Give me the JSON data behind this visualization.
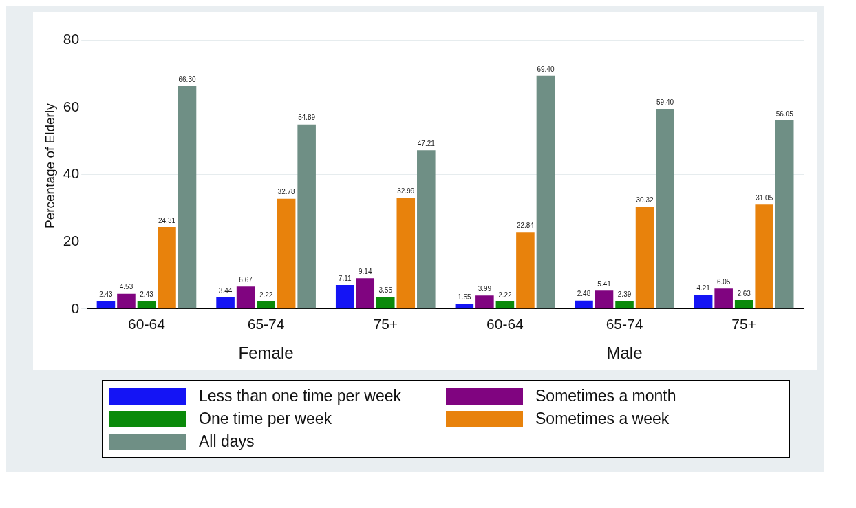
{
  "chart_data": {
    "type": "bar",
    "ylabel": "Percentage of Elderly",
    "categories": [
      "60-64",
      "65-74",
      "75+",
      "60-64",
      "65-74",
      "75+"
    ],
    "annotations": [
      "Female",
      "Male"
    ],
    "ylim": [
      0,
      85
    ],
    "yticks": [
      0,
      20,
      40,
      60,
      80
    ],
    "grid": "y",
    "legend": "bottom",
    "series": [
      {
        "name": "Less than one time per week",
        "color": "#1414f5",
        "values": [
          2.43,
          3.44,
          7.11,
          1.55,
          2.48,
          4.21
        ],
        "value_labels": [
          "2.43",
          "3.44",
          "7.11",
          "1.55",
          "2.48",
          "4.21"
        ]
      },
      {
        "name": "Sometimes a month",
        "color": "#800480",
        "values": [
          4.53,
          6.67,
          9.14,
          3.99,
          5.41,
          6.05
        ],
        "value_labels": [
          "4.53",
          "6.67",
          "9.14",
          "3.99",
          "5.41",
          "6.05"
        ]
      },
      {
        "name": "One time per week",
        "color": "#0a8a0a",
        "values": [
          2.43,
          2.22,
          3.55,
          2.22,
          2.39,
          2.63
        ],
        "value_labels": [
          "2.43",
          "2.22",
          "3.55",
          "2.22",
          "2.39",
          "2.63"
        ]
      },
      {
        "name": "Sometimes a week",
        "color": "#e8820c",
        "values": [
          24.31,
          32.78,
          32.99,
          22.84,
          30.32,
          31.05
        ],
        "value_labels": [
          "24.31",
          "32.78",
          "32.99",
          "22.84",
          "30.32",
          "31.05"
        ]
      },
      {
        "name": "All days",
        "color": "#6f8f85",
        "values": [
          66.3,
          54.89,
          47.21,
          69.4,
          59.4,
          56.05
        ],
        "value_labels": [
          "66.30",
          "54.89",
          "47.21",
          "69.40",
          "59.40",
          "56.05"
        ]
      }
    ]
  }
}
